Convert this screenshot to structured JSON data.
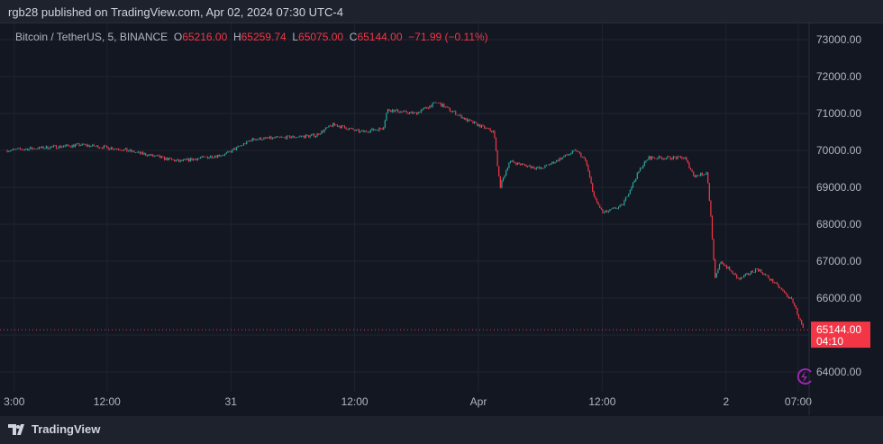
{
  "header": {
    "published": "rgb28 published on TradingView.com, Apr 02, 2024 07:30 UTC-4"
  },
  "legend": {
    "symbol": "Bitcoin / TetherUS, 5, BINANCE",
    "o_label": "O",
    "o": "65216.00",
    "h_label": "H",
    "h": "65259.74",
    "l_label": "L",
    "l": "65075.00",
    "c_label": "C",
    "c": "65144.00",
    "change": "−71.99 (−0.11%)"
  },
  "price_tag": {
    "price": "65144.00",
    "countdown": "04:10"
  },
  "footer": {
    "brand": "TradingView"
  },
  "colors": {
    "up": "#26a69a",
    "down": "#f23645",
    "background": "#131722",
    "grid": "#1f2430"
  },
  "chart_data": {
    "type": "candlestick",
    "interval": "5",
    "ylim": [
      63500,
      73500
    ],
    "y_ticks": [
      "73000.00",
      "72000.00",
      "71000.00",
      "70000.00",
      "69000.00",
      "68000.00",
      "67000.00",
      "66000.00",
      "65000.00",
      "64000.00"
    ],
    "x_ticks": [
      {
        "label": "3:00",
        "t": "2024-03-30 03:00"
      },
      {
        "label": "12:00",
        "t": "2024-03-30 12:00"
      },
      {
        "label": "31",
        "t": "2024-03-31 00:00"
      },
      {
        "label": "12:00",
        "t": "2024-03-31 12:00"
      },
      {
        "label": "Apr",
        "t": "2024-04-01 00:00"
      },
      {
        "label": "12:00",
        "t": "2024-04-01 12:00"
      },
      {
        "label": "2",
        "t": "2024-04-02 00:00"
      },
      {
        "label": "07:00",
        "t": "2024-04-02 07:00"
      }
    ],
    "grid": true,
    "last_price": 65144.0,
    "approx_close_path": [
      [
        "2024-03-30 02:20",
        70000
      ],
      [
        "2024-03-30 09:30",
        70150
      ],
      [
        "2024-03-30 13:00",
        70050
      ],
      [
        "2024-03-30 19:00",
        69700
      ],
      [
        "2024-03-30 23:30",
        69900
      ],
      [
        "2024-03-31 02:05",
        70300
      ],
      [
        "2024-03-31 08:10",
        70400
      ],
      [
        "2024-03-31 09:55",
        70700
      ],
      [
        "2024-03-31 12:35",
        70500
      ],
      [
        "2024-03-31 14:45",
        70600
      ],
      [
        "2024-03-31 15:10",
        71100
      ],
      [
        "2024-03-31 17:50",
        71000
      ],
      [
        "2024-03-31 20:00",
        71300
      ],
      [
        "2024-03-31 23:00",
        70800
      ],
      [
        "2024-04-01 01:30",
        70500
      ],
      [
        "2024-04-01 02:05",
        69000
      ],
      [
        "2024-04-01 03:00",
        69700
      ],
      [
        "2024-04-01 06:00",
        69500
      ],
      [
        "2024-04-01 09:30",
        70000
      ],
      [
        "2024-04-01 10:25",
        69700
      ],
      [
        "2024-04-01 11:15",
        68700
      ],
      [
        "2024-04-01 12:05",
        68300
      ],
      [
        "2024-04-01 13:55",
        68500
      ],
      [
        "2024-04-01 15:40",
        69500
      ],
      [
        "2024-04-01 16:30",
        69800
      ],
      [
        "2024-04-01 20:00",
        69800
      ],
      [
        "2024-04-01 20:55",
        69300
      ],
      [
        "2024-04-01 22:10",
        69400
      ],
      [
        "2024-04-01 22:35",
        68000
      ],
      [
        "2024-04-01 22:55",
        66500
      ],
      [
        "2024-04-01 23:30",
        67000
      ],
      [
        "2024-04-02 01:15",
        66500
      ],
      [
        "2024-04-02 03:00",
        66800
      ],
      [
        "2024-04-02 04:45",
        66400
      ],
      [
        "2024-04-02 06:30",
        65900
      ],
      [
        "2024-04-02 07:30",
        65144
      ]
    ]
  }
}
